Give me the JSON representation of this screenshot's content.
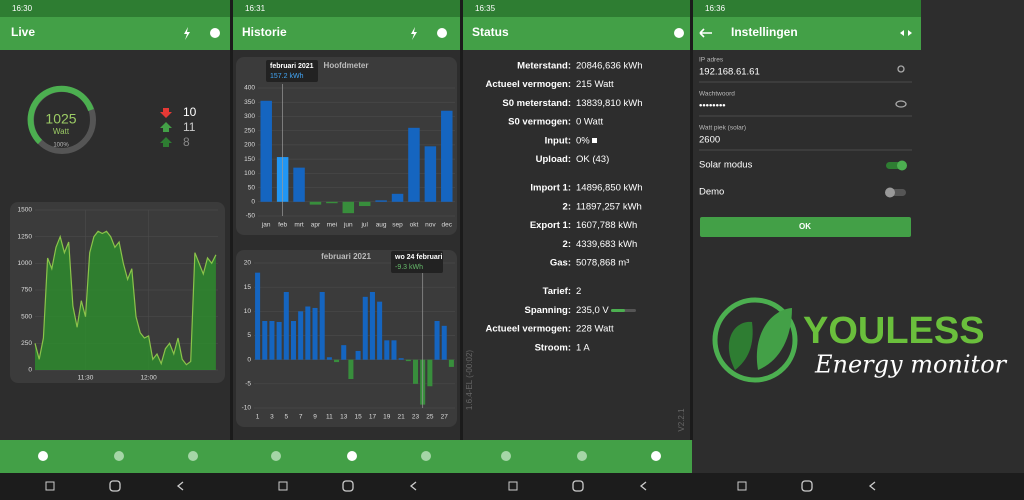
{
  "live": {
    "time": "16:30",
    "title": "Live",
    "gauge": {
      "value": 1025,
      "unit": "Watt",
      "percent": "100%"
    },
    "counters": [
      10,
      11,
      8
    ],
    "chart": {
      "type": "area",
      "color": "#8bc34a",
      "fill": "#2e8b2e",
      "grid": true,
      "xlim": [
        666,
        753
      ],
      "xticks": [
        {
          "value": 690,
          "label": "11:30"
        },
        {
          "value": 720,
          "label": "12:00"
        }
      ],
      "ylim": [
        0,
        1500
      ],
      "yticks": [
        0,
        250,
        500,
        750,
        1000,
        1250,
        1500
      ],
      "x": [
        666,
        668,
        670,
        672,
        674,
        676,
        678,
        680,
        682,
        684,
        686,
        688,
        690,
        692,
        694,
        696,
        698,
        700,
        702,
        704,
        706,
        708,
        710,
        712,
        714,
        716,
        718,
        720,
        722,
        724,
        726,
        728,
        730,
        732,
        734,
        736,
        738,
        740,
        742,
        744,
        746,
        748,
        750,
        752
      ],
      "values": [
        250,
        100,
        300,
        1050,
        950,
        1150,
        1250,
        1100,
        1200,
        600,
        400,
        650,
        500,
        1100,
        1250,
        1300,
        1280,
        1300,
        1250,
        1150,
        1200,
        1000,
        850,
        950,
        500,
        350,
        300,
        320,
        100,
        150,
        60,
        200,
        250,
        150,
        300,
        100,
        50,
        80,
        1100,
        1000,
        900,
        1050,
        1000,
        1080
      ]
    }
  },
  "history": {
    "time": "16:31",
    "title": "Historie",
    "year_chart": {
      "type": "bar",
      "title": "Hoofdmeter",
      "grid": true,
      "categories": [
        "jan",
        "feb",
        "mrt",
        "apr",
        "mei",
        "jun",
        "jul",
        "aug",
        "sep",
        "okt",
        "nov",
        "dec"
      ],
      "values": [
        355,
        157.2,
        120,
        -10,
        -5,
        -40,
        -15,
        5,
        28,
        260,
        195,
        320
      ],
      "colors": [
        "#1565c0",
        "#2196f3",
        "#1565c0",
        "#388e3c",
        "#388e3c",
        "#388e3c",
        "#388e3c",
        "#1565c0",
        "#1565c0",
        "#1565c0",
        "#1565c0",
        "#1565c0"
      ],
      "ylim": [
        -50,
        400
      ],
      "yticks": [
        -50,
        0,
        50,
        100,
        150,
        200,
        250,
        300,
        350,
        400
      ],
      "tooltip": {
        "title": "februari 2021",
        "value": "157.2 kWh"
      }
    },
    "month_chart": {
      "type": "bar",
      "title": "februari 2021",
      "grid": true,
      "color": "#1565c0",
      "negative_color": "#388e3c",
      "categories": [
        "1",
        null,
        "3",
        null,
        "5",
        null,
        "7",
        null,
        "9",
        null,
        "11",
        null,
        "13",
        null,
        "15",
        null,
        "17",
        null,
        "19",
        null,
        "21",
        null,
        "23",
        null,
        "25",
        null,
        "27",
        null
      ],
      "values": [
        18,
        8,
        8,
        7.8,
        14,
        8,
        10,
        11,
        10.7,
        14,
        0.5,
        -0.5,
        3,
        -4,
        1.8,
        13,
        14,
        12,
        4,
        4,
        0.3,
        -0.3,
        -5,
        -9.3,
        -5.5,
        8,
        7,
        -1.5
      ],
      "ylim": [
        -10,
        20
      ],
      "yticks": [
        -10,
        -5,
        0,
        5,
        10,
        15,
        20
      ],
      "tooltip": {
        "title": "wo 24 februari",
        "value": "-9.3 kWh"
      }
    }
  },
  "status": {
    "time": "16:35",
    "title": "Status",
    "rows": [
      {
        "label": "Meterstand:",
        "value": "20846,636 kWh"
      },
      {
        "label": "Actueel vermogen:",
        "value": "215 Watt"
      },
      {
        "label": "S0 meterstand:",
        "value": "13839,810 kWh"
      },
      {
        "label": "S0 vermogen:",
        "value": "0 Watt"
      },
      {
        "label": "Input:",
        "value": "0%"
      },
      {
        "label": "Upload:",
        "value": "OK (43)"
      },
      {
        "label": "Import 1:",
        "value": "14896,850 kWh"
      },
      {
        "label": "2:",
        "value": "11897,257 kWh"
      },
      {
        "label": "Export 1:",
        "value": "1607,788 kWh"
      },
      {
        "label": "2:",
        "value": "4339,683 kWh"
      },
      {
        "label": "Gas:",
        "value": "5078,868 m³"
      },
      {
        "label": "Tarief:",
        "value": "2"
      },
      {
        "label": "Spanning:",
        "value": "235,0 V"
      },
      {
        "label": "Actueel vermogen:",
        "value": "228 Watt"
      },
      {
        "label": "Stroom:",
        "value": "1 A"
      }
    ],
    "firmware": "1.6.4-EL (-00:02)",
    "version": "V2.2.1"
  },
  "settings": {
    "time": "16:36",
    "title": "Instellingen",
    "fields": [
      {
        "label": "IP adres",
        "value": "192.168.61.61"
      },
      {
        "label": "Wachtwoord",
        "value": "••••••••"
      },
      {
        "label": "Watt piek (solar)",
        "value": "2600"
      }
    ],
    "toggles": [
      {
        "label": "Solar modus",
        "on": true
      },
      {
        "label": "Demo",
        "on": false
      }
    ],
    "button": "OK",
    "logo": {
      "name": "YOULESS",
      "tagline": "Energy monitor"
    }
  }
}
